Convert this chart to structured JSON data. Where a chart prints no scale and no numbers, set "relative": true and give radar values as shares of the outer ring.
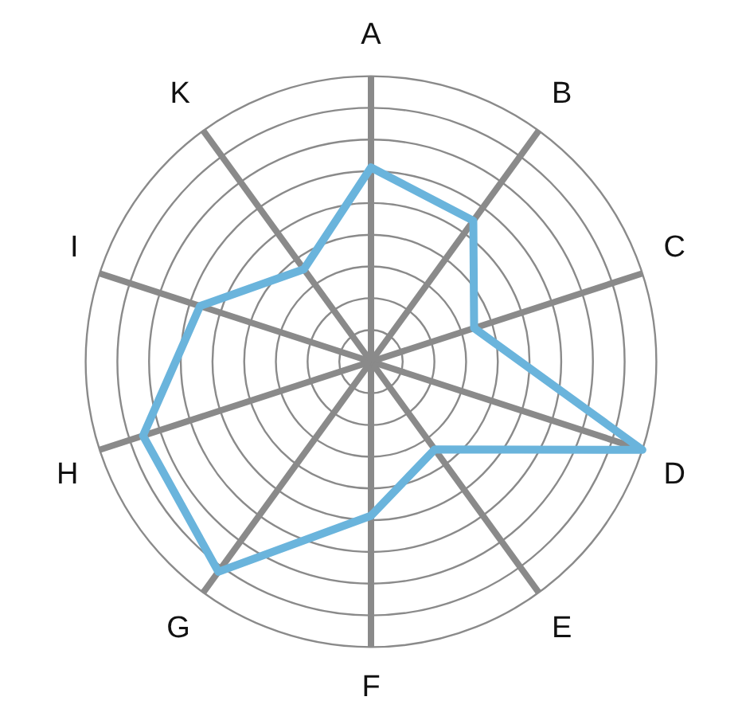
{
  "chart_data": {
    "type": "radar",
    "relative": true,
    "categories": [
      "A",
      "B",
      "C",
      "D",
      "E",
      "F",
      "G",
      "H",
      "I",
      "K"
    ],
    "series": [
      {
        "color": "#6ab4dc",
        "values": [
          0.68,
          0.61,
          0.38,
          1,
          0.38,
          0.54,
          0.91,
          0.84,
          0.63,
          0.4
        ]
      }
    ],
    "legend": false,
    "marker": "none",
    "grid": true
  }
}
